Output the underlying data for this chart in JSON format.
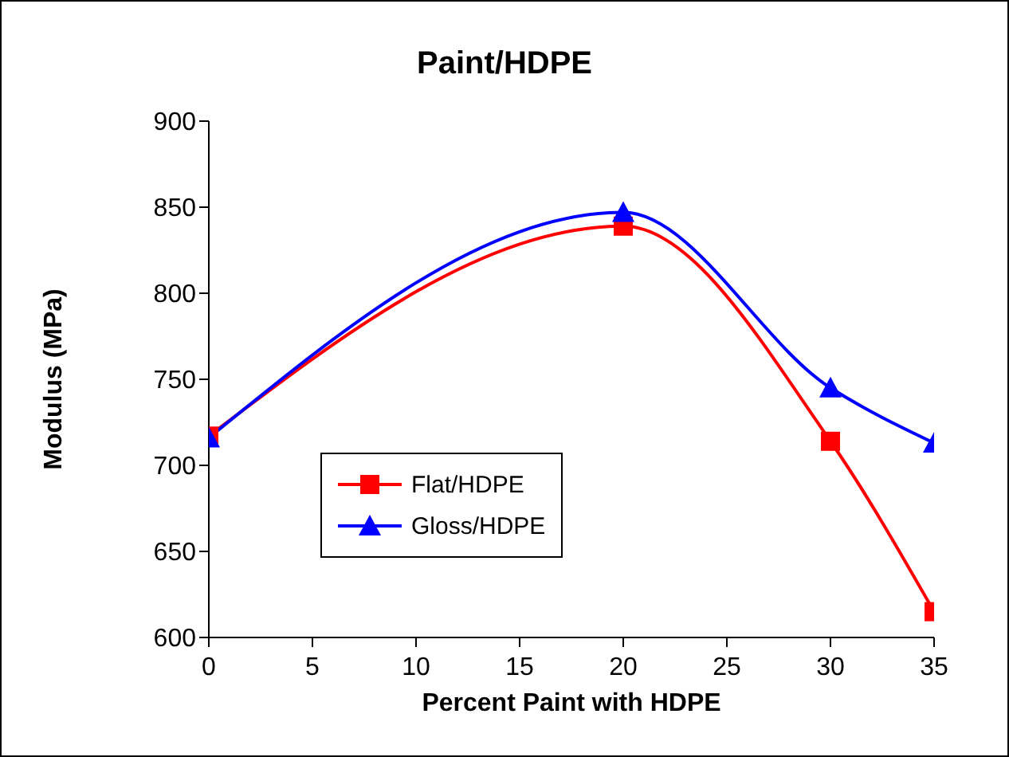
{
  "chart_data": {
    "type": "line",
    "title": "Paint/HDPE",
    "xlabel": "Percent Paint with HDPE",
    "ylabel": "Modulus (MPa)",
    "x": [
      0,
      20,
      30,
      35
    ],
    "series": [
      {
        "name": "Flat/HDPE",
        "color": "#ff0000",
        "marker": "square",
        "values": [
          717,
          839,
          714,
          615
        ]
      },
      {
        "name": "Gloss/HDPE",
        "color": "#0000ff",
        "marker": "triangle",
        "values": [
          716,
          847,
          745,
          713
        ]
      }
    ],
    "xlim": [
      0,
      35
    ],
    "xticks": [
      0,
      5,
      10,
      15,
      20,
      25,
      30,
      35
    ],
    "ylim": [
      600,
      900
    ],
    "yticks": [
      600,
      650,
      700,
      750,
      800,
      850,
      900
    ],
    "legend": "bottom left",
    "line_style": "solid"
  }
}
